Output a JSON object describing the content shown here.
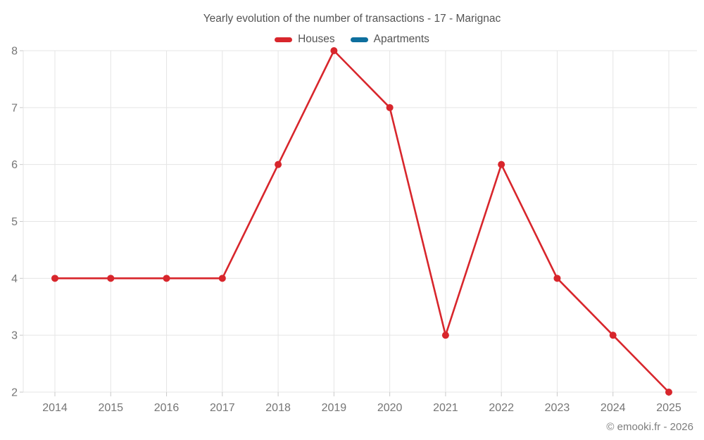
{
  "title": "Yearly evolution of the number of transactions - 17 - Marignac",
  "copyright": "© emooki.fr - 2026",
  "colors": {
    "houses": "#d8262c",
    "apartments": "#0e6f9e",
    "gridline": "#e5e5e5",
    "tick": "#c9c9c9",
    "axis_label": "#757575",
    "title_text": "#545454"
  },
  "chart_data": {
    "type": "line",
    "title": "Yearly evolution of the number of transactions - 17 - Marignac",
    "categories": [
      "2014",
      "2015",
      "2016",
      "2017",
      "2018",
      "2019",
      "2020",
      "2021",
      "2022",
      "2023",
      "2024",
      "2025"
    ],
    "series": [
      {
        "name": "Houses",
        "color": "#d8262c",
        "values": [
          4,
          4,
          4,
          4,
          6,
          8,
          7,
          3,
          6,
          4,
          3,
          2
        ]
      },
      {
        "name": "Apartments",
        "color": "#0e6f9e",
        "values": []
      }
    ],
    "xlabel": "",
    "ylabel": "",
    "ylim": [
      2,
      8
    ],
    "yticks": [
      2,
      3,
      4,
      5,
      6,
      7,
      8
    ],
    "grid": true,
    "legend_position": "top",
    "marker_radius": 5,
    "line_width": 2.6
  }
}
